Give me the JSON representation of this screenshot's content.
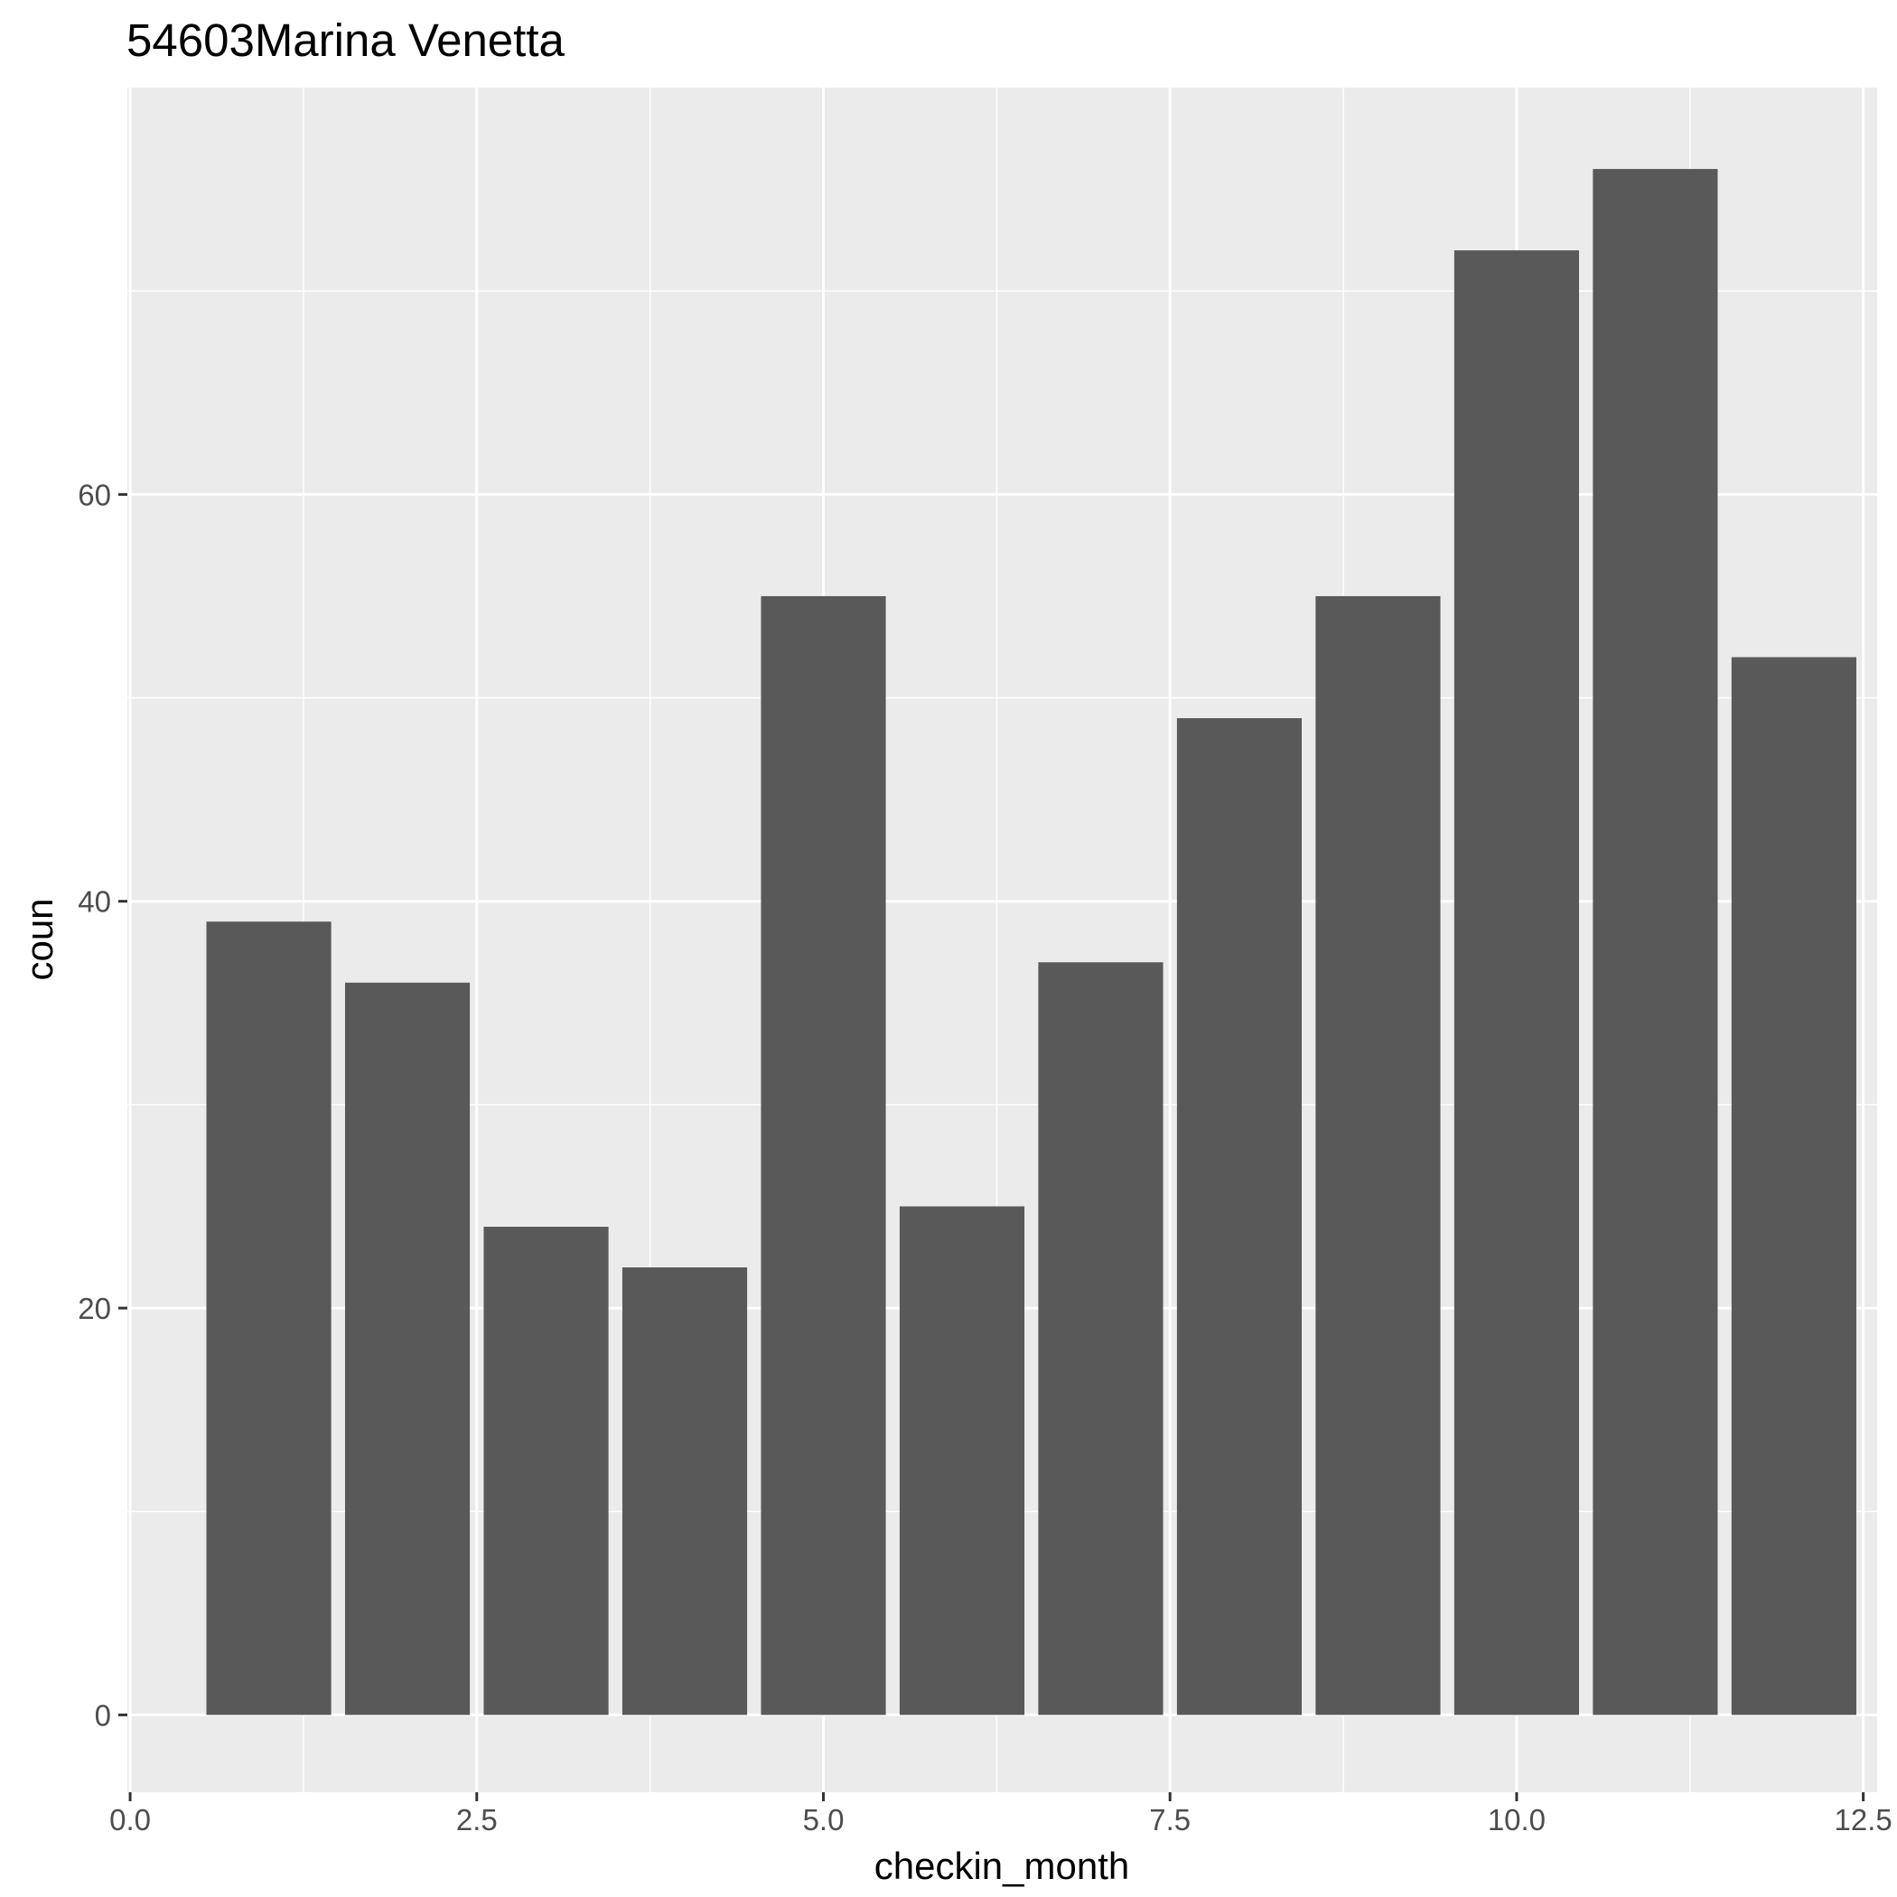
{
  "chart_data": {
    "type": "bar",
    "title": "54603Marina Venetta",
    "xlabel": "checkin_month",
    "ylabel": "coun",
    "x": [
      1,
      2,
      3,
      4,
      5,
      6,
      7,
      8,
      9,
      10,
      11,
      12
    ],
    "values": [
      39,
      36,
      24,
      22,
      55,
      25,
      37,
      49,
      55,
      72,
      76,
      52
    ],
    "bar_width": 0.9,
    "xlim": [
      -0.02,
      12.6
    ],
    "ylim": [
      -3.8,
      80.0
    ],
    "x_ticks": [
      0.0,
      2.5,
      5.0,
      7.5,
      10.0,
      12.5
    ],
    "x_tick_labels": [
      "0.0",
      "2.5",
      "5.0",
      "7.5",
      "10.0",
      "12.5"
    ],
    "y_ticks": [
      0,
      20,
      40,
      60
    ],
    "y_tick_labels": [
      "0",
      "20",
      "40",
      "60"
    ],
    "grid": true,
    "legend": "none",
    "colors": {
      "panel": "#ebebeb",
      "grid": "#ffffff",
      "bar": "#595959",
      "tick": "#333333",
      "tick_text": "#4d4d4d",
      "text": "#000000"
    }
  }
}
